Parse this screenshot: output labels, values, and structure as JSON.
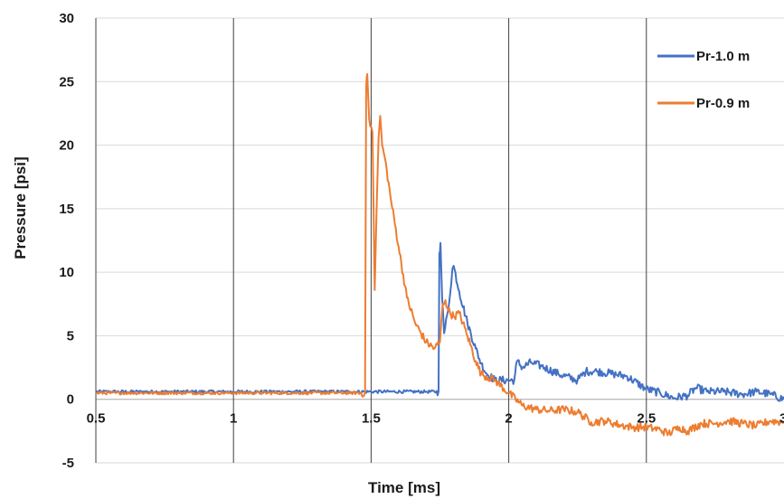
{
  "chart_data": {
    "type": "line",
    "xlabel": "Time [ms]",
    "ylabel": "Pressure [psi]",
    "xlim": [
      0.5,
      3
    ],
    "ylim": [
      -5,
      30
    ],
    "x_ticks": [
      0.5,
      1,
      1.5,
      2,
      2.5,
      3
    ],
    "x_tick_labels": [
      "0.5",
      "1",
      "1.5",
      "2",
      "2.5",
      "3"
    ],
    "y_ticks": [
      -5,
      0,
      5,
      10,
      15,
      20,
      25,
      30
    ],
    "y_tick_labels": [
      "-5",
      "0",
      "5",
      "10",
      "15",
      "20",
      "25",
      "30"
    ],
    "grid": {
      "vertical": true,
      "horizontal": true
    },
    "legend_position": "top-right",
    "series": [
      {
        "name": "Pr-1.0 m",
        "color": "#4472C4",
        "points": [
          [
            0.5,
            0.6
          ],
          [
            1.0,
            0.6
          ],
          [
            1.5,
            0.6
          ],
          [
            1.7,
            0.6
          ],
          [
            1.745,
            0.6
          ],
          [
            1.748,
            11.5
          ],
          [
            1.752,
            12.3
          ],
          [
            1.758,
            8.0
          ],
          [
            1.765,
            5.2
          ],
          [
            1.78,
            7.0
          ],
          [
            1.795,
            10.2
          ],
          [
            1.8,
            10.5
          ],
          [
            1.82,
            8.5
          ],
          [
            1.85,
            6.0
          ],
          [
            1.88,
            4.0
          ],
          [
            1.9,
            2.8
          ],
          [
            1.92,
            2.0
          ],
          [
            1.95,
            1.5
          ],
          [
            2.0,
            1.5
          ],
          [
            2.02,
            1.5
          ],
          [
            2.03,
            3.0
          ],
          [
            2.05,
            2.5
          ],
          [
            2.08,
            2.9
          ],
          [
            2.12,
            2.6
          ],
          [
            2.18,
            2.0
          ],
          [
            2.25,
            1.5
          ],
          [
            2.28,
            2.2
          ],
          [
            2.32,
            2.2
          ],
          [
            2.38,
            2.0
          ],
          [
            2.43,
            1.8
          ],
          [
            2.5,
            0.8
          ],
          [
            2.55,
            0.5
          ],
          [
            2.6,
            0.1
          ],
          [
            2.65,
            0.3
          ],
          [
            2.68,
            0.9
          ],
          [
            2.72,
            0.6
          ],
          [
            2.78,
            0.6
          ],
          [
            2.85,
            0.4
          ],
          [
            2.9,
            0.6
          ],
          [
            2.95,
            0.4
          ],
          [
            3.0,
            0.0
          ]
        ]
      },
      {
        "name": "Pr-0.9 m",
        "color": "#ED7D31",
        "points": [
          [
            0.5,
            0.5
          ],
          [
            1.0,
            0.5
          ],
          [
            1.4,
            0.5
          ],
          [
            1.478,
            0.5
          ],
          [
            1.482,
            24.5
          ],
          [
            1.486,
            25.6
          ],
          [
            1.493,
            22.0
          ],
          [
            1.505,
            21.0
          ],
          [
            1.513,
            8.6
          ],
          [
            1.52,
            15.0
          ],
          [
            1.527,
            20.5
          ],
          [
            1.533,
            22.3
          ],
          [
            1.54,
            20.0
          ],
          [
            1.55,
            19.0
          ],
          [
            1.57,
            16.0
          ],
          [
            1.6,
            12.0
          ],
          [
            1.63,
            8.0
          ],
          [
            1.66,
            6.0
          ],
          [
            1.7,
            4.5
          ],
          [
            1.73,
            4.0
          ],
          [
            1.75,
            4.5
          ],
          [
            1.76,
            7.5
          ],
          [
            1.77,
            7.8
          ],
          [
            1.78,
            7.0
          ],
          [
            1.8,
            6.5
          ],
          [
            1.82,
            6.8
          ],
          [
            1.85,
            5.0
          ],
          [
            1.88,
            3.0
          ],
          [
            1.9,
            2.0
          ],
          [
            1.95,
            1.5
          ],
          [
            2.0,
            0.5
          ],
          [
            2.05,
            -0.5
          ],
          [
            2.1,
            -0.8
          ],
          [
            2.15,
            -0.9
          ],
          [
            2.2,
            -0.8
          ],
          [
            2.25,
            -1.0
          ],
          [
            2.3,
            -1.8
          ],
          [
            2.35,
            -1.7
          ],
          [
            2.4,
            -2.0
          ],
          [
            2.45,
            -2.2
          ],
          [
            2.5,
            -2.2
          ],
          [
            2.55,
            -2.4
          ],
          [
            2.58,
            -2.7
          ],
          [
            2.62,
            -2.2
          ],
          [
            2.65,
            -2.5
          ],
          [
            2.7,
            -1.9
          ],
          [
            2.75,
            -1.9
          ],
          [
            2.8,
            -1.7
          ],
          [
            2.85,
            -1.9
          ],
          [
            2.9,
            -2.1
          ],
          [
            2.95,
            -1.7
          ],
          [
            3.0,
            -1.8
          ]
        ]
      }
    ]
  }
}
